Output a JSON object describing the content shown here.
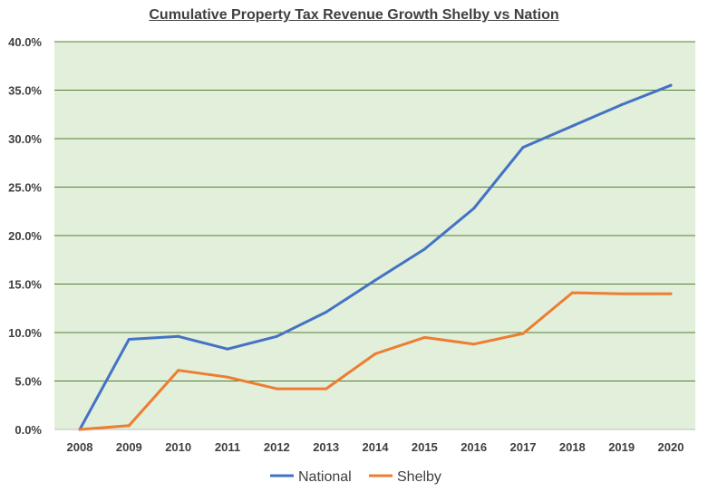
{
  "chart_data": {
    "type": "line",
    "title": "Cumulative Property Tax Revenue Growth Shelby vs Nation",
    "xlabel": "",
    "ylabel": "",
    "x": [
      "2008",
      "2009",
      "2010",
      "2011",
      "2012",
      "2013",
      "2014",
      "2015",
      "2016",
      "2017",
      "2018",
      "2019",
      "2020"
    ],
    "y_ticks": [
      "0.0%",
      "5.0%",
      "10.0%",
      "15.0%",
      "20.0%",
      "25.0%",
      "30.0%",
      "35.0%",
      "40.0%"
    ],
    "ylim": [
      0,
      40
    ],
    "grid": true,
    "legend_position": "bottom",
    "background_color": "#e2efda",
    "grid_color": "#548235",
    "series": [
      {
        "name": "National",
        "color": "#4472c4",
        "values": [
          0.0,
          9.3,
          9.6,
          8.3,
          9.6,
          12.1,
          15.4,
          18.6,
          22.8,
          29.1,
          31.3,
          33.5,
          35.5
        ]
      },
      {
        "name": "Shelby",
        "color": "#ed7d31",
        "values": [
          0.0,
          0.4,
          6.1,
          5.4,
          4.2,
          4.2,
          7.8,
          9.5,
          8.8,
          9.9,
          14.1,
          14.0,
          14.0
        ]
      }
    ]
  }
}
